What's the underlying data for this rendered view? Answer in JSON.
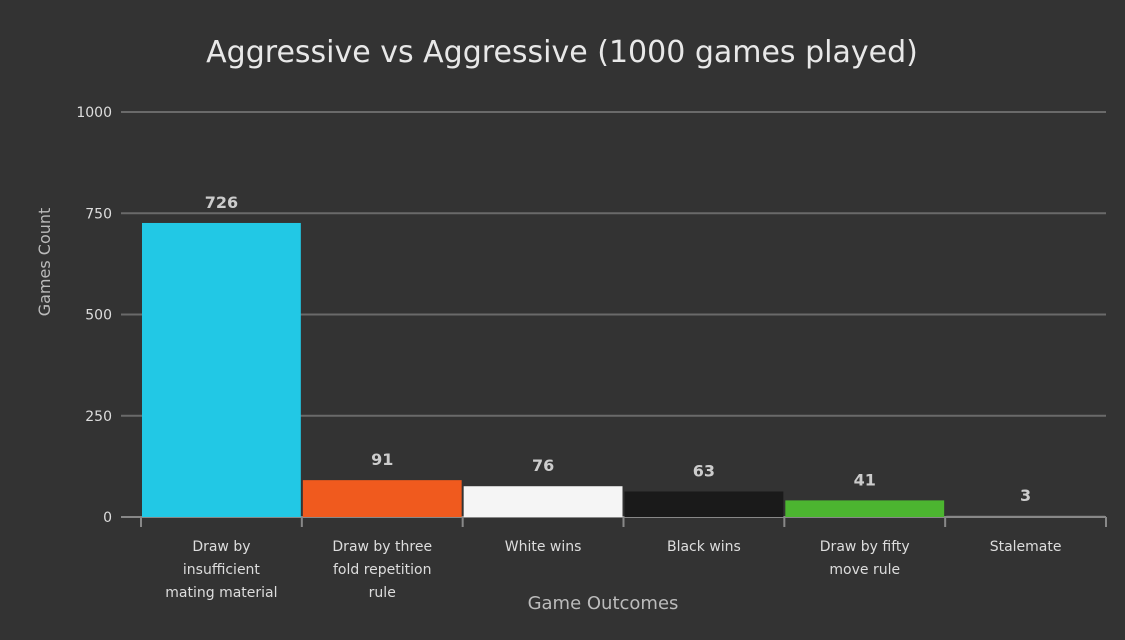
{
  "chart_data": {
    "type": "bar",
    "title": "Aggressive vs Aggressive (1000 games played)",
    "xlabel": "Game Outcomes",
    "ylabel": "Games Count",
    "ylim": [
      0,
      1000
    ],
    "yticks": [
      0,
      250,
      500,
      750,
      1000
    ],
    "grid": true,
    "categories": [
      [
        "Draw by",
        "insufficient",
        "mating material"
      ],
      [
        "Draw by three",
        "fold repetition",
        "rule"
      ],
      [
        "White wins"
      ],
      [
        "Black wins"
      ],
      [
        "Draw by fifty",
        "move rule"
      ],
      [
        "Stalemate"
      ]
    ],
    "values": [
      726,
      91,
      76,
      63,
      41,
      3
    ],
    "colors": [
      "#22c8e5",
      "#f05a1e",
      "#f5f5f5",
      "#1a1a1a",
      "#4cb530",
      "#888888"
    ],
    "background": "#333333"
  }
}
